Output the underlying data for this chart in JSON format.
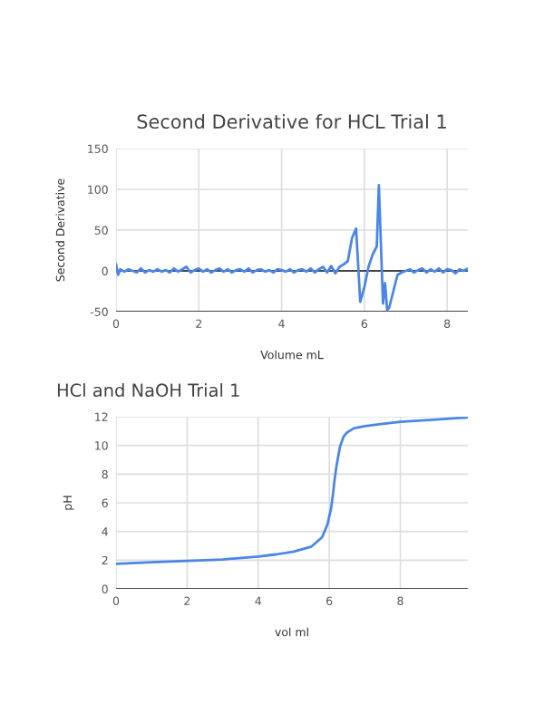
{
  "chart_data": [
    {
      "type": "line",
      "title": "Second Derivative for HCL Trial 1",
      "xlabel": "Volume mL",
      "ylabel": "Second Derivative",
      "xlim": [
        0,
        8.5
      ],
      "ylim": [
        -50,
        150
      ],
      "xticks": [
        0,
        2,
        4,
        6,
        8
      ],
      "yticks": [
        -50,
        0,
        50,
        100,
        150
      ],
      "grid": true,
      "legend": false,
      "series": [
        {
          "color": "#4a86e8",
          "x": [
            0,
            0.05,
            0.1,
            0.2,
            0.3,
            0.4,
            0.5,
            0.6,
            0.7,
            0.8,
            0.9,
            1.0,
            1.1,
            1.2,
            1.3,
            1.4,
            1.5,
            1.6,
            1.7,
            1.8,
            1.9,
            2.0,
            2.1,
            2.2,
            2.3,
            2.4,
            2.5,
            2.6,
            2.7,
            2.8,
            2.9,
            3.0,
            3.1,
            3.2,
            3.3,
            3.4,
            3.5,
            3.6,
            3.7,
            3.8,
            3.9,
            4.0,
            4.1,
            4.2,
            4.3,
            4.4,
            4.5,
            4.6,
            4.7,
            4.8,
            4.9,
            5.0,
            5.1,
            5.2,
            5.3,
            5.4,
            5.5,
            5.6,
            5.7,
            5.8,
            5.9,
            6.0,
            6.1,
            6.2,
            6.3,
            6.35,
            6.45,
            6.5,
            6.55,
            6.6,
            6.7,
            6.8,
            6.9,
            7.0,
            7.1,
            7.2,
            7.3,
            7.4,
            7.5,
            7.6,
            7.7,
            7.8,
            7.9,
            8.0,
            8.1,
            8.2,
            8.3,
            8.4,
            8.5
          ],
          "values": [
            8,
            -5,
            2,
            -1,
            2,
            0,
            -2,
            3,
            -2,
            1,
            -1,
            2,
            -1,
            1,
            -2,
            3,
            -1,
            2,
            5,
            -2,
            1,
            3,
            -1,
            2,
            -2,
            1,
            3,
            -1,
            2,
            -2,
            1,
            2,
            -1,
            3,
            -2,
            1,
            2,
            -1,
            1,
            -2,
            2,
            1,
            -1,
            2,
            -2,
            1,
            2,
            -1,
            3,
            -2,
            2,
            5,
            -2,
            6,
            -3,
            5,
            8,
            12,
            40,
            52,
            -38,
            -20,
            5,
            20,
            30,
            105,
            -40,
            -15,
            -48,
            -45,
            -25,
            -5,
            -2,
            0,
            2,
            -2,
            1,
            3,
            -2,
            2,
            -1,
            3,
            -2,
            2,
            1,
            -3,
            2,
            0,
            3
          ]
        }
      ]
    },
    {
      "type": "line",
      "title": "HCl and NaOH Trial 1",
      "xlabel": "vol ml",
      "ylabel": "pH",
      "xlim": [
        0,
        9.9
      ],
      "ylim": [
        0,
        12
      ],
      "xticks": [
        0,
        2,
        4,
        6,
        8
      ],
      "yticks": [
        0,
        2,
        4,
        6,
        8,
        10,
        12
      ],
      "grid": true,
      "legend": false,
      "series": [
        {
          "color": "#4a86e8",
          "x": [
            0,
            1,
            2,
            3,
            4,
            4.5,
            5,
            5.5,
            5.8,
            5.95,
            6.05,
            6.1,
            6.15,
            6.2,
            6.3,
            6.4,
            6.5,
            6.7,
            7,
            7.5,
            8,
            9,
            9.9
          ],
          "values": [
            1.75,
            1.85,
            1.95,
            2.05,
            2.25,
            2.4,
            2.6,
            2.95,
            3.6,
            4.5,
            5.6,
            6.5,
            7.6,
            8.5,
            9.9,
            10.6,
            10.9,
            11.2,
            11.35,
            11.5,
            11.65,
            11.8,
            11.95
          ]
        }
      ]
    }
  ]
}
